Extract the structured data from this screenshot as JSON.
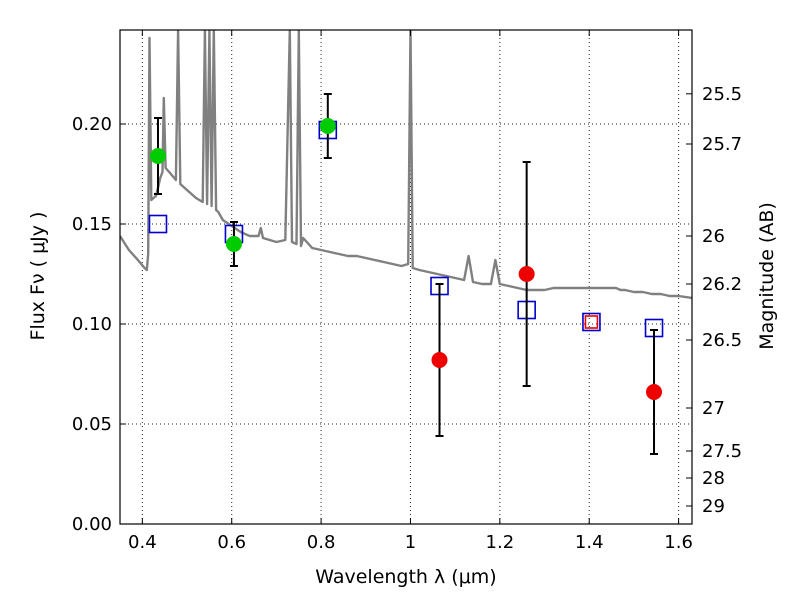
{
  "chart_data": {
    "type": "scatter",
    "xlabel": "Wavelength  λ (μm)",
    "ylabel": "Flux  Fν  ( μJy )",
    "y2label": "Magnitude (AB)",
    "xlim": [
      0.35,
      1.63
    ],
    "ylim": [
      0.0,
      0.247
    ],
    "grid": true,
    "xticks": [
      {
        "value": 0.4,
        "label": "0.4"
      },
      {
        "value": 0.6,
        "label": "0.6"
      },
      {
        "value": 0.8,
        "label": "0.8"
      },
      {
        "value": 1.0,
        "label": "1"
      },
      {
        "value": 1.2,
        "label": "1.2"
      },
      {
        "value": 1.4,
        "label": "1.4"
      },
      {
        "value": 1.6,
        "label": "1.6"
      }
    ],
    "yticks": [
      {
        "value": 0.0,
        "label": "0.00"
      },
      {
        "value": 0.05,
        "label": "0.05"
      },
      {
        "value": 0.1,
        "label": "0.10"
      },
      {
        "value": 0.15,
        "label": "0.15"
      },
      {
        "value": 0.2,
        "label": "0.20"
      }
    ],
    "y2ticks": [
      {
        "flux": 0.2151,
        "label": "25.5"
      },
      {
        "flux": 0.19,
        "label": "25.7"
      },
      {
        "flux": 0.144,
        "label": "26"
      },
      {
        "flux": 0.12,
        "label": "26.2"
      },
      {
        "flux": 0.092,
        "label": "26.5"
      },
      {
        "flux": 0.058,
        "label": "27"
      },
      {
        "flux": 0.0365,
        "label": "27.5"
      },
      {
        "flux": 0.023,
        "label": "28"
      },
      {
        "flux": 0.009,
        "label": "29"
      }
    ],
    "series": [
      {
        "kind": "model_spectrum",
        "color": "#808080",
        "points": [
          [
            0.35,
            0.144
          ],
          [
            0.37,
            0.137
          ],
          [
            0.39,
            0.132
          ],
          [
            0.405,
            0.128
          ],
          [
            0.41,
            0.127
          ],
          [
            0.413,
            0.135
          ],
          [
            0.416,
            0.243
          ],
          [
            0.42,
            0.162
          ],
          [
            0.43,
            0.164
          ],
          [
            0.435,
            0.168
          ],
          [
            0.44,
            0.173
          ],
          [
            0.445,
            0.176
          ],
          [
            0.448,
            0.213
          ],
          [
            0.452,
            0.178
          ],
          [
            0.46,
            0.176
          ],
          [
            0.475,
            0.172
          ],
          [
            0.48,
            0.247
          ],
          [
            0.485,
            0.17
          ],
          [
            0.5,
            0.167
          ],
          [
            0.52,
            0.163
          ],
          [
            0.535,
            0.161
          ],
          [
            0.54,
            0.247
          ],
          [
            0.545,
            0.16
          ],
          [
            0.55,
            0.247
          ],
          [
            0.555,
            0.159
          ],
          [
            0.56,
            0.247
          ],
          [
            0.565,
            0.157
          ],
          [
            0.57,
            0.156
          ],
          [
            0.58,
            0.152
          ],
          [
            0.6,
            0.149
          ],
          [
            0.62,
            0.146
          ],
          [
            0.64,
            0.144
          ],
          [
            0.66,
            0.144
          ],
          [
            0.665,
            0.148
          ],
          [
            0.67,
            0.143
          ],
          [
            0.7,
            0.141
          ],
          [
            0.72,
            0.142
          ],
          [
            0.73,
            0.247
          ],
          [
            0.735,
            0.141
          ],
          [
            0.745,
            0.14
          ],
          [
            0.75,
            0.247
          ],
          [
            0.755,
            0.139
          ],
          [
            0.76,
            0.143
          ],
          [
            0.78,
            0.138
          ],
          [
            0.8,
            0.137
          ],
          [
            0.82,
            0.136
          ],
          [
            0.84,
            0.135
          ],
          [
            0.86,
            0.134
          ],
          [
            0.88,
            0.134
          ],
          [
            0.9,
            0.133
          ],
          [
            0.92,
            0.132
          ],
          [
            0.94,
            0.131
          ],
          [
            0.96,
            0.13
          ],
          [
            0.98,
            0.129
          ],
          [
            0.995,
            0.13
          ],
          [
            1.0,
            0.247
          ],
          [
            1.005,
            0.128
          ],
          [
            1.02,
            0.127
          ],
          [
            1.04,
            0.126
          ],
          [
            1.06,
            0.125
          ],
          [
            1.08,
            0.124
          ],
          [
            1.1,
            0.123
          ],
          [
            1.12,
            0.122
          ],
          [
            1.13,
            0.134
          ],
          [
            1.14,
            0.121
          ],
          [
            1.16,
            0.12
          ],
          [
            1.18,
            0.12
          ],
          [
            1.19,
            0.132
          ],
          [
            1.2,
            0.12
          ],
          [
            1.22,
            0.119
          ],
          [
            1.24,
            0.118
          ],
          [
            1.26,
            0.117
          ],
          [
            1.28,
            0.117
          ],
          [
            1.3,
            0.117
          ],
          [
            1.32,
            0.118
          ],
          [
            1.34,
            0.118
          ],
          [
            1.36,
            0.118
          ],
          [
            1.38,
            0.118
          ],
          [
            1.4,
            0.118
          ],
          [
            1.42,
            0.118
          ],
          [
            1.44,
            0.118
          ],
          [
            1.46,
            0.118
          ],
          [
            1.47,
            0.117
          ],
          [
            1.48,
            0.117
          ],
          [
            1.5,
            0.116
          ],
          [
            1.52,
            0.116
          ],
          [
            1.54,
            0.115
          ],
          [
            1.56,
            0.115
          ],
          [
            1.58,
            0.114
          ],
          [
            1.6,
            0.114
          ],
          [
            1.63,
            0.113
          ]
        ]
      },
      {
        "kind": "model_photometry",
        "marker": "open-square",
        "color": "#0000cc",
        "points": [
          [
            0.435,
            0.15
          ],
          [
            0.605,
            0.145
          ],
          [
            0.815,
            0.197
          ],
          [
            1.065,
            0.119
          ],
          [
            1.26,
            0.107
          ],
          [
            1.405,
            0.101
          ],
          [
            1.545,
            0.098
          ]
        ]
      },
      {
        "kind": "detection",
        "marker": "filled-circle",
        "color": "#00cc00",
        "points": [
          {
            "x": 0.435,
            "y": 0.184,
            "err": 0.019
          },
          {
            "x": 0.605,
            "y": 0.14,
            "err": 0.011
          },
          {
            "x": 0.815,
            "y": 0.199,
            "err": 0.016
          }
        ]
      },
      {
        "kind": "non-detection",
        "marker": "filled-circle",
        "color": "#ee0000",
        "points": [
          {
            "x": 1.065,
            "y": 0.082,
            "err": 0.038
          },
          {
            "x": 1.26,
            "y": 0.125,
            "err": 0.056
          },
          {
            "x": 1.545,
            "y": 0.066,
            "err": 0.031
          }
        ]
      },
      {
        "kind": "upper_limit_square",
        "marker": "open-square",
        "color": "#ee0000",
        "points": [
          [
            1.405,
            0.101
          ]
        ]
      }
    ]
  }
}
